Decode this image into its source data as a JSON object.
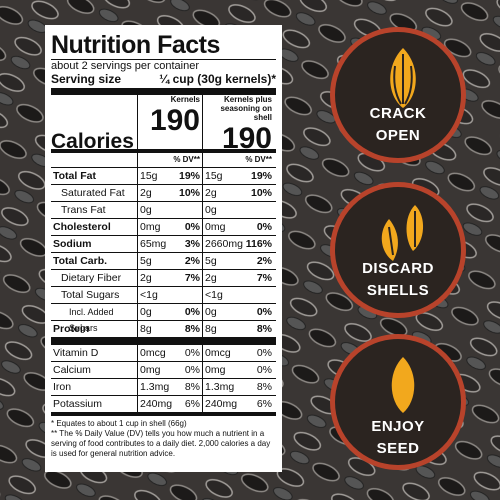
{
  "label": {
    "title": "Nutrition Facts",
    "servings": "about 2 servings per container",
    "serving_size_label": "Serving size",
    "serving_size_value": "¼ cup (30g kernels)*",
    "col_headers": [
      "Kernels",
      "Kernels plus seasoning on shell"
    ],
    "calories_label": "Calories",
    "calories": [
      "190",
      "190"
    ],
    "dv_header": [
      "% DV**",
      "% DV**"
    ],
    "nutrients": [
      {
        "name": "Total Fat",
        "kernels": "15g",
        "kernels_dv": "19%",
        "shell": "15g",
        "shell_dv": "19%"
      },
      {
        "name": "Saturated Fat",
        "kernels": "2g",
        "kernels_dv": "10%",
        "shell": "2g",
        "shell_dv": "10%"
      },
      {
        "name": "Trans Fat",
        "kernels": "0g",
        "shell": "0g"
      },
      {
        "name": "Cholesterol",
        "kernels": "0mg",
        "kernels_dv": "0%",
        "shell": "0mg",
        "shell_dv": "0%"
      },
      {
        "name": "Sodium",
        "kernels": "65mg",
        "kernels_dv": "3%",
        "shell": "2660mg",
        "shell_dv": "116%"
      },
      {
        "name": "Total Carb.",
        "kernels": "5g",
        "kernels_dv": "2%",
        "shell": "5g",
        "shell_dv": "2%"
      },
      {
        "name": "Dietary Fiber",
        "kernels": "2g",
        "kernels_dv": "7%",
        "shell": "2g",
        "shell_dv": "7%"
      },
      {
        "name": "Total Sugars",
        "kernels": "<1g",
        "shell": "<1g"
      },
      {
        "name": "Incl. Added Sugars",
        "kernels": "0g",
        "kernels_dv": "0%",
        "shell": "0g",
        "shell_dv": "0%"
      },
      {
        "name": "Protein",
        "kernels": "8g",
        "kernels_dv": "8%",
        "shell": "8g",
        "shell_dv": "8%"
      }
    ],
    "vitamins": [
      {
        "name": "Vitamin D",
        "kernels": "0mcg",
        "kernels_dv": "0%",
        "shell": "0mcg",
        "shell_dv": "0%"
      },
      {
        "name": "Calcium",
        "kernels": "0mg",
        "kernels_dv": "0%",
        "shell": "0mg",
        "shell_dv": "0%"
      },
      {
        "name": "Iron",
        "kernels": "1.3mg",
        "kernels_dv": "8%",
        "shell": "1.3mg",
        "shell_dv": "8%"
      },
      {
        "name": "Potassium",
        "kernels": "240mg",
        "kernels_dv": "6%",
        "shell": "240mg",
        "shell_dv": "6%"
      }
    ],
    "footnotes": [
      "* Equates to about 1 cup in shell (66g)",
      "** The % Daily Value (DV) tells you how much a nutrient in a serving of food contributes to a daily diet. 2,000 calories a day is used for general nutrition advice."
    ]
  },
  "badges": [
    {
      "lines": [
        "CRACK",
        "OPEN"
      ]
    },
    {
      "lines": [
        "DISCARD",
        "SHELLS"
      ]
    },
    {
      "lines": [
        "ENJOY",
        "SEED"
      ]
    }
  ]
}
